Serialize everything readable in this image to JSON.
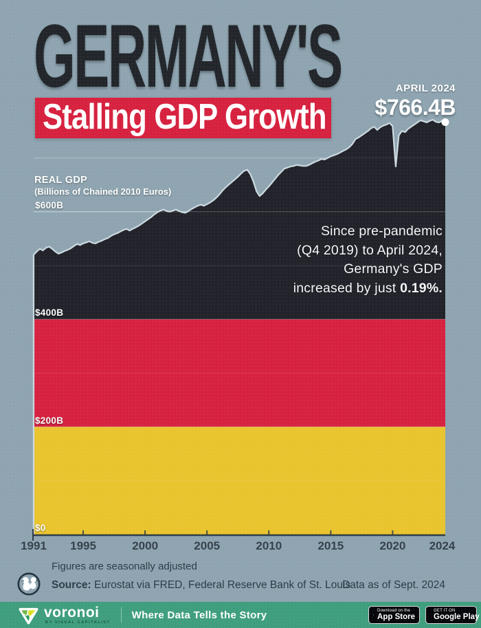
{
  "header": {
    "title": "GERMANY'S",
    "subtitle": "Stalling GDP Growth"
  },
  "callout": {
    "label": "APRIL 2024",
    "value": "$766.4B"
  },
  "axis_header": {
    "label": "REAL GDP",
    "units": "(Billions of Chained 2010 Euros)"
  },
  "annotation": {
    "lines": [
      "Since pre-pandemic",
      "(Q4 2019) to April 2024,",
      "Germany's GDP"
    ],
    "last_line_prefix": "increased by just ",
    "last_line_bold": "0.19%."
  },
  "footer": {
    "note": "Figures are seasonally adjusted",
    "source_label": "Source:",
    "source_text": " Eurostat via FRED, Federal Reserve Bank of St. Louis",
    "data_as_of": "Data as of Sept. 2024"
  },
  "brandbar": {
    "brand": "voronoi",
    "byline": "BY VISUAL CAPITALIST",
    "tagline": "Where Data Tells the Story",
    "appstore": {
      "line1": "Download on the",
      "line2": "App Store"
    },
    "googleplay": {
      "line1": "GET IT ON",
      "line2": "Google Play"
    }
  },
  "colors": {
    "background": "#8ea4b0",
    "flag_black": "#242429",
    "flag_red": "#d6213f",
    "flag_gold": "#e9c42d",
    "line_stroke": "#ccdae0",
    "axis": "#2c3a44",
    "brand_green": "#3f9e7d"
  },
  "chart_data": {
    "type": "area",
    "title": "Germany's Stalling GDP Growth",
    "ylabel": "REAL GDP (Billions of Chained 2010 Euros)",
    "x_start": 1991.0,
    "x_step": 0.25,
    "xlim": [
      1991,
      2024.25
    ],
    "ylim": [
      0,
      789
    ],
    "x_ticks": [
      1991,
      1995,
      2000,
      2005,
      2010,
      2015,
      2020,
      2024
    ],
    "y_ticks": [
      {
        "value": 600,
        "label": "$600B"
      },
      {
        "value": 400,
        "label": "$400B"
      },
      {
        "value": 200,
        "label": "$200B"
      },
      {
        "value": 0,
        "label": "$0"
      }
    ],
    "y_gridlines": [
      100,
      200,
      300,
      400,
      500,
      600,
      700
    ],
    "major_gridlines": [
      200,
      400,
      600
    ],
    "flag_bands": [
      {
        "name": "black",
        "from_value": 400,
        "to_value": 789,
        "color": "#242429"
      },
      {
        "name": "red",
        "from_value": 200,
        "to_value": 400,
        "color": "#d6213f"
      },
      {
        "name": "gold",
        "from_value": 0,
        "to_value": 200,
        "color": "#e9c42d"
      }
    ],
    "endpoint": {
      "x": 2024.25,
      "value": 766.4,
      "date": "APRIL 2024",
      "label": "$766.4B"
    },
    "values": [
      520,
      526,
      531,
      528,
      533,
      535,
      531,
      526,
      522,
      524,
      527,
      529,
      532,
      536,
      540,
      538,
      541,
      543,
      545,
      542,
      541,
      544,
      546,
      549,
      551,
      555,
      558,
      560,
      563,
      566,
      568,
      565,
      568,
      571,
      574,
      578,
      582,
      586,
      590,
      595,
      599,
      602,
      604,
      601,
      600,
      602,
      604,
      601,
      599,
      598,
      601,
      605,
      608,
      611,
      613,
      611,
      614,
      617,
      621,
      626,
      632,
      639,
      645,
      650,
      655,
      660,
      665,
      671,
      676,
      678,
      670,
      656,
      638,
      629,
      634,
      641,
      647,
      654,
      661,
      668,
      674,
      680,
      682,
      684,
      685,
      687,
      686,
      685,
      685,
      687,
      690,
      693,
      695,
      698,
      697,
      700,
      703,
      705,
      707,
      710,
      713,
      716,
      720,
      726,
      735,
      738,
      742,
      746,
      750,
      755,
      758,
      752,
      757,
      760,
      762,
      765,
      759,
      684,
      742,
      750,
      748,
      754,
      758,
      762,
      766,
      770,
      768,
      766,
      769,
      771,
      767,
      766,
      769,
      766.4
    ]
  }
}
